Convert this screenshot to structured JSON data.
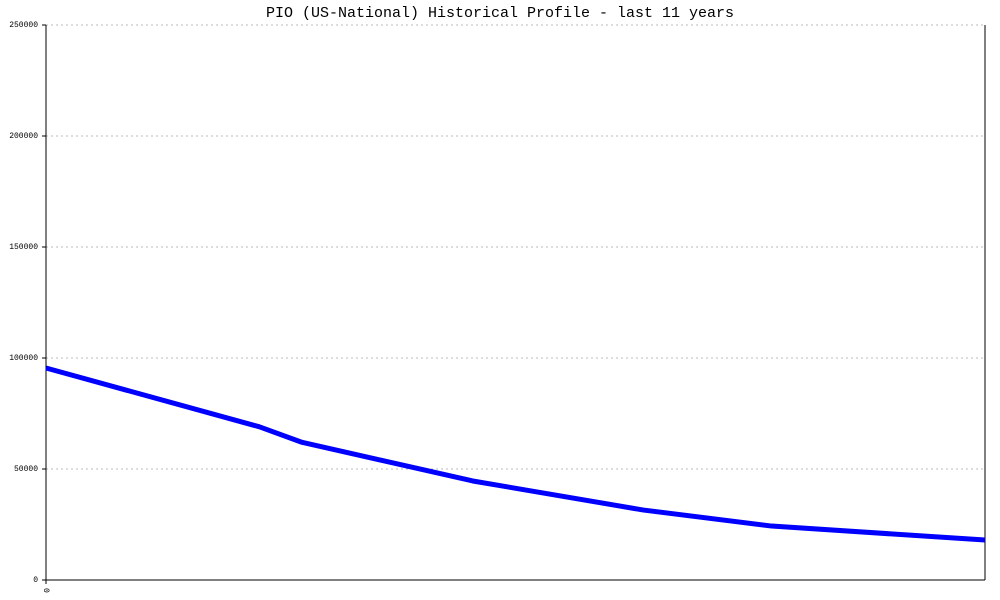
{
  "chart_data": {
    "type": "line",
    "title": "PIO (US-National) Historical Profile - last 11 years",
    "x": [
      0,
      2.5,
      3,
      5,
      7,
      8.5,
      11
    ],
    "series": [
      {
        "name": "PIO",
        "color": "#0000ff",
        "values": [
          95500,
          69000,
          62000,
          44600,
          31500,
          24300,
          18000
        ]
      }
    ],
    "xlim": [
      0,
      11
    ],
    "xticks": [
      0
    ],
    "ylim": [
      0,
      250000
    ],
    "yticks": [
      0,
      50000,
      100000,
      150000,
      200000,
      250000
    ],
    "grid": true
  }
}
